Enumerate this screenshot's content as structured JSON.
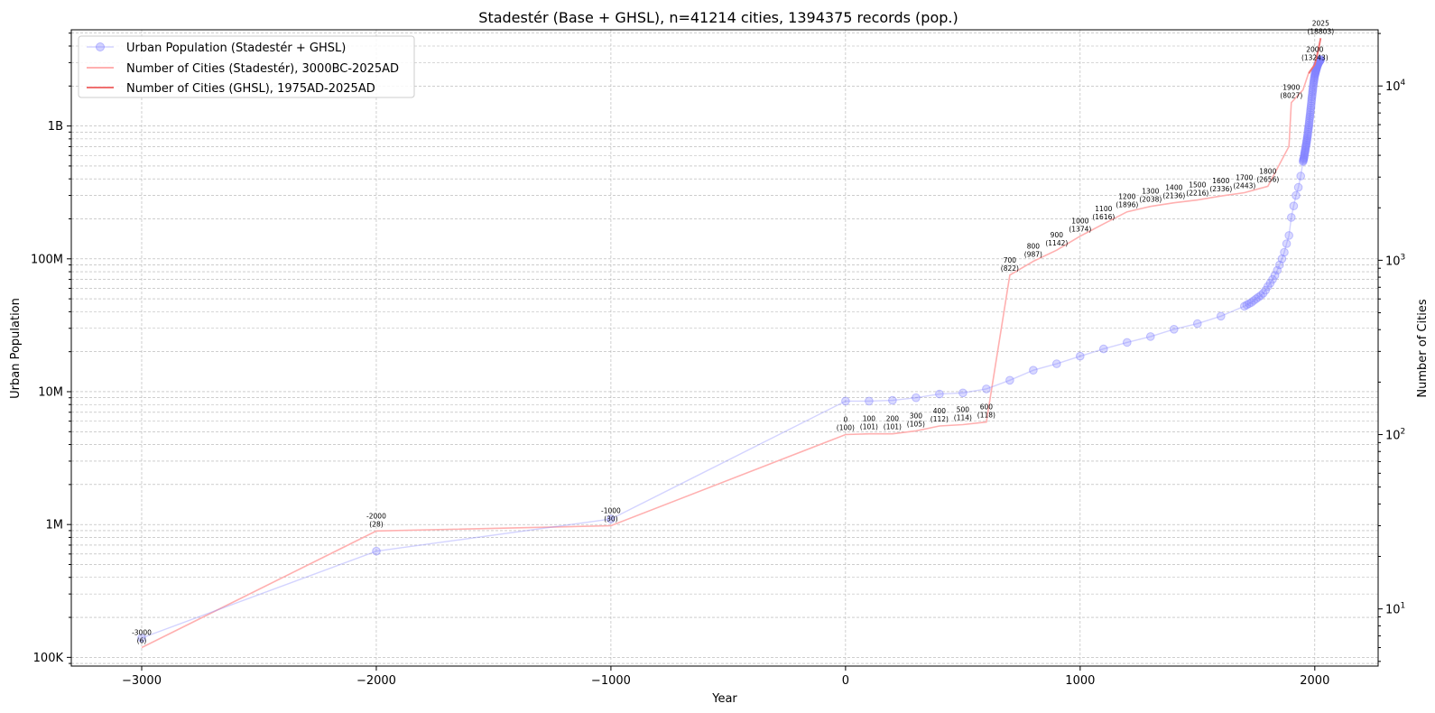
{
  "chart_data": {
    "type": "line",
    "title": "Stadestér (Base + GHSL), n=41214 cities, 1394375 records (pop.)",
    "xlabel": "Year",
    "ylabel_left": "Urban Population",
    "ylabel_right": "Number of Cities",
    "xlim": [
      -3300,
      2270
    ],
    "ylim_left": [
      86000,
      5300000000
    ],
    "ylim_right": [
      4.7,
      21000
    ],
    "y_scale": "log",
    "grid": true,
    "legend_position": "top-left",
    "x_ticks": [
      {
        "value": -3000,
        "label": "−3000"
      },
      {
        "value": -2000,
        "label": "−2000"
      },
      {
        "value": -1000,
        "label": "−1000"
      },
      {
        "value": 0,
        "label": "0"
      },
      {
        "value": 1000,
        "label": "1000"
      },
      {
        "value": 2000,
        "label": "2000"
      }
    ],
    "y_left_ticks": [
      {
        "value": 100000,
        "label": "100K"
      },
      {
        "value": 1000000,
        "label": "1M"
      },
      {
        "value": 10000000,
        "label": "10M"
      },
      {
        "value": 100000000,
        "label": "100M"
      },
      {
        "value": 1000000000,
        "label": "1B"
      }
    ],
    "y_right_ticks": [
      {
        "value": 10,
        "base": "10",
        "exp": "1"
      },
      {
        "value": 100,
        "base": "10",
        "exp": "2"
      },
      {
        "value": 1000,
        "base": "10",
        "exp": "3"
      },
      {
        "value": 10000,
        "base": "10",
        "exp": "4"
      }
    ],
    "legend": [
      {
        "label": "Urban Population (Stadestér + GHSL)",
        "color": "#8080ff",
        "marker": true
      },
      {
        "label": "Number of Cities (Stadestér), 3000BC-2025AD",
        "color": "#ffb0b0",
        "marker": false
      },
      {
        "label": "Number of Cities (GHSL), 1975AD-2025AD",
        "color": "#f07070",
        "marker": false
      }
    ],
    "series": [
      {
        "name": "Urban Population (Stadestér + GHSL)",
        "axis": "left",
        "color": "#8080ff",
        "x": [
          -3000,
          -2000,
          -1000,
          0,
          100,
          200,
          300,
          400,
          500,
          600,
          700,
          800,
          900,
          1000,
          1100,
          1200,
          1300,
          1400,
          1500,
          1600,
          1700,
          1710,
          1720,
          1730,
          1740,
          1750,
          1760,
          1770,
          1780,
          1790,
          1800,
          1810,
          1820,
          1830,
          1840,
          1850,
          1860,
          1870,
          1880,
          1890,
          1900,
          1910,
          1920,
          1930,
          1940,
          1950,
          1951,
          1952,
          1953,
          1954,
          1955,
          1956,
          1957,
          1958,
          1959,
          1960,
          1961,
          1962,
          1963,
          1964,
          1965,
          1966,
          1967,
          1968,
          1969,
          1970,
          1971,
          1972,
          1973,
          1974,
          1975,
          1976,
          1977,
          1978,
          1979,
          1980,
          1981,
          1982,
          1983,
          1984,
          1985,
          1986,
          1987,
          1988,
          1989,
          1990,
          1991,
          1992,
          1993,
          1994,
          1995,
          1996,
          1997,
          1998,
          1999,
          2000,
          2001,
          2002,
          2003,
          2004,
          2005,
          2006,
          2007,
          2008,
          2009,
          2010,
          2011,
          2012,
          2013,
          2014,
          2015,
          2016,
          2017,
          2018,
          2019,
          2020,
          2021,
          2022,
          2023,
          2024,
          2025
        ],
        "y": [
          140000,
          630000,
          1100000,
          8500000,
          8500000,
          8600000,
          9000000,
          9600000,
          9800000,
          10500000,
          12200000,
          14500000,
          16200000,
          18500000,
          21000000,
          23500000,
          26000000,
          29500000,
          32500000,
          37000000,
          44000000,
          45000000,
          46000000,
          47000000,
          48500000,
          50000000,
          51500000,
          53000000,
          55000000,
          58000000,
          62000000,
          65500000,
          70000000,
          75000000,
          82000000,
          90000000,
          100000000,
          112000000,
          130000000,
          150000000,
          205000000,
          250000000,
          300000000,
          345000000,
          420000000,
          540000000,
          550000000,
          560000000,
          570000000,
          580000000,
          595000000,
          610000000,
          625000000,
          640000000,
          655000000,
          670000000,
          690000000,
          705000000,
          720000000,
          740000000,
          760000000,
          780000000,
          800000000,
          820000000,
          845000000,
          870000000,
          900000000,
          930000000,
          960000000,
          990000000,
          1020000000,
          1060000000,
          1100000000,
          1140000000,
          1180000000,
          1220000000,
          1270000000,
          1320000000,
          1370000000,
          1420000000,
          1480000000,
          1540000000,
          1600000000,
          1660000000,
          1720000000,
          1790000000,
          1850000000,
          1910000000,
          1980000000,
          2040000000,
          2110000000,
          2170000000,
          2230000000,
          2290000000,
          2350000000,
          2410000000,
          2450000000,
          2490000000,
          2530000000,
          2570000000,
          2610000000,
          2650000000,
          2690000000,
          2730000000,
          2770000000,
          2810000000,
          2840000000,
          2870000000,
          2900000000,
          2930000000,
          2960000000,
          2990000000,
          3010000000,
          3030000000,
          3050000000,
          3070000000,
          3090000000,
          3110000000,
          3130000000,
          3150000000,
          3170000000
        ]
      },
      {
        "name": "Number of Cities (Stadestér), 3000BC-2025AD",
        "axis": "right",
        "color": "#ffb0b0",
        "x": [
          -3000,
          -2000,
          -1000,
          0,
          100,
          200,
          300,
          400,
          500,
          600,
          700,
          800,
          900,
          1000,
          1100,
          1200,
          1300,
          1400,
          1500,
          1600,
          1700,
          1800,
          1890,
          1900,
          1950,
          1975,
          2000,
          2025
        ],
        "y": [
          6,
          28,
          30,
          100,
          101,
          101,
          105,
          112,
          114,
          118,
          822,
          987,
          1142,
          1374,
          1616,
          1896,
          2038,
          2136,
          2216,
          2336,
          2443,
          2656,
          4500,
          8027,
          9500,
          12000,
          13243,
          18803
        ]
      },
      {
        "name": "Number of Cities (GHSL), 1975AD-2025AD",
        "axis": "right",
        "color": "#f07070",
        "x": [
          1975,
          1990,
          2000,
          2015,
          2025
        ],
        "y": [
          11800,
          12700,
          13243,
          16000,
          18803
        ]
      }
    ],
    "annotations": [
      {
        "x": -3000,
        "y": 6,
        "year": "-3000",
        "count": "(6)"
      },
      {
        "x": -2000,
        "y": 28,
        "year": "-2000",
        "count": "(28)"
      },
      {
        "x": -1000,
        "y": 30,
        "year": "-1000",
        "count": "(30)"
      },
      {
        "x": 0,
        "y": 100,
        "year": "0",
        "count": "(100)"
      },
      {
        "x": 100,
        "y": 101,
        "year": "100",
        "count": "(101)"
      },
      {
        "x": 200,
        "y": 101,
        "year": "200",
        "count": "(101)"
      },
      {
        "x": 300,
        "y": 105,
        "year": "300",
        "count": "(105)"
      },
      {
        "x": 400,
        "y": 112,
        "year": "400",
        "count": "(112)"
      },
      {
        "x": 500,
        "y": 114,
        "year": "500",
        "count": "(114)"
      },
      {
        "x": 600,
        "y": 118,
        "year": "600",
        "count": "(118)"
      },
      {
        "x": 700,
        "y": 822,
        "year": "700",
        "count": "(822)"
      },
      {
        "x": 800,
        "y": 987,
        "year": "800",
        "count": "(987)"
      },
      {
        "x": 900,
        "y": 1142,
        "year": "900",
        "count": "(1142)"
      },
      {
        "x": 1000,
        "y": 1374,
        "year": "1000",
        "count": "(1374)"
      },
      {
        "x": 1100,
        "y": 1616,
        "year": "1100",
        "count": "(1616)"
      },
      {
        "x": 1200,
        "y": 1896,
        "year": "1200",
        "count": "(1896)"
      },
      {
        "x": 1300,
        "y": 2038,
        "year": "1300",
        "count": "(2038)"
      },
      {
        "x": 1400,
        "y": 2136,
        "year": "1400",
        "count": "(2136)"
      },
      {
        "x": 1500,
        "y": 2216,
        "year": "1500",
        "count": "(2216)"
      },
      {
        "x": 1600,
        "y": 2336,
        "year": "1600",
        "count": "(2336)"
      },
      {
        "x": 1700,
        "y": 2443,
        "year": "1700",
        "count": "(2443)"
      },
      {
        "x": 1800,
        "y": 2656,
        "year": "1800",
        "count": "(2656)"
      },
      {
        "x": 1900,
        "y": 8027,
        "year": "1900",
        "count": "(8027)"
      },
      {
        "x": 2000,
        "y": 13243,
        "year": "2000",
        "count": "(13243)"
      },
      {
        "x": 2025,
        "y": 18803,
        "year": "2025",
        "count": "(18803)"
      }
    ]
  }
}
